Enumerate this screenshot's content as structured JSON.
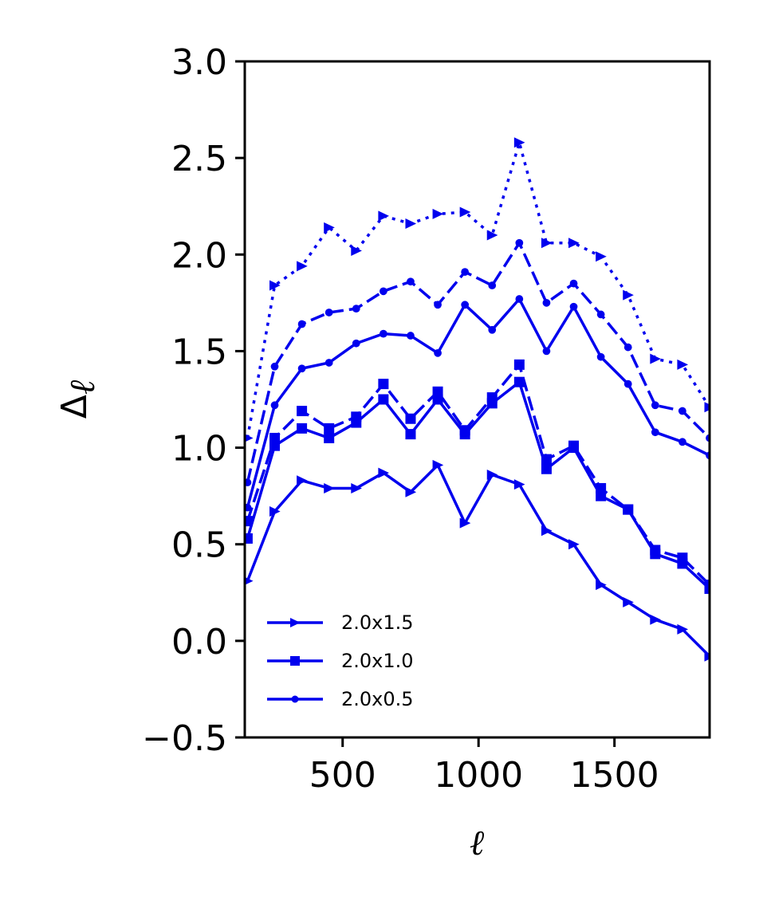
{
  "chart_data": {
    "type": "line",
    "xlabel": "ℓ",
    "ylabel": "Δ",
    "ylabel_subscript": "ℓ",
    "xlim": [
      140,
      1850
    ],
    "ylim": [
      -0.5,
      3.0
    ],
    "xticks": [
      500,
      1000,
      1500
    ],
    "xtick_labels": [
      "500",
      "1000",
      "1500"
    ],
    "yticks": [
      -0.5,
      0.0,
      0.5,
      1.0,
      1.5,
      2.0,
      2.5,
      3.0
    ],
    "ytick_labels": [
      "−0.5",
      "0.0",
      "0.5",
      "1.0",
      "1.5",
      "2.0",
      "2.5",
      "3.0"
    ],
    "grid": false,
    "legend_position": "lower-left",
    "color": "#0000ee",
    "x": [
      150,
      250,
      350,
      450,
      550,
      650,
      750,
      850,
      950,
      1050,
      1150,
      1250,
      1350,
      1450,
      1550,
      1650,
      1750,
      1850
    ],
    "series": [
      {
        "name": "2.0x1.5",
        "marker": "triangle",
        "line": "solid",
        "legend": true,
        "values": [
          0.31,
          0.67,
          0.83,
          0.79,
          0.79,
          0.87,
          0.77,
          0.91,
          0.61,
          0.86,
          0.81,
          0.57,
          0.5,
          0.29,
          0.2,
          0.11,
          0.06,
          -0.08
        ]
      },
      {
        "name": "2.0x1.0",
        "marker": "square",
        "line": "solid",
        "legend": true,
        "values": [
          0.53,
          1.01,
          1.1,
          1.05,
          1.13,
          1.25,
          1.07,
          1.25,
          1.07,
          1.23,
          1.34,
          0.89,
          1.0,
          0.75,
          0.68,
          0.45,
          0.4,
          0.27
        ]
      },
      {
        "name": "2.0x0.5",
        "marker": "circle",
        "line": "solid",
        "legend": true,
        "values": [
          0.69,
          1.22,
          1.41,
          1.44,
          1.54,
          1.59,
          1.58,
          1.49,
          1.74,
          1.61,
          1.77,
          1.5,
          1.73,
          1.47,
          1.33,
          1.08,
          1.03,
          0.96
        ]
      },
      {
        "name": "",
        "marker": "circle",
        "line": "dashed",
        "legend": false,
        "values": [
          0.82,
          1.42,
          1.64,
          1.7,
          1.72,
          1.81,
          1.86,
          1.74,
          1.91,
          1.84,
          2.06,
          1.75,
          1.85,
          1.69,
          1.52,
          1.22,
          1.19,
          1.05
        ]
      },
      {
        "name": "",
        "marker": "square",
        "line": "dashed",
        "legend": false,
        "values": [
          0.62,
          1.05,
          1.19,
          1.1,
          1.16,
          1.33,
          1.15,
          1.29,
          1.09,
          1.26,
          1.43,
          0.94,
          1.01,
          0.79,
          0.68,
          0.47,
          0.43,
          0.29
        ]
      },
      {
        "name": "",
        "marker": "triangle",
        "line": "dotted",
        "legend": false,
        "values": [
          1.05,
          1.84,
          1.94,
          2.14,
          2.02,
          2.2,
          2.16,
          2.21,
          2.22,
          2.1,
          2.58,
          2.06,
          2.06,
          1.99,
          1.79,
          1.46,
          1.43,
          1.21
        ]
      }
    ]
  }
}
